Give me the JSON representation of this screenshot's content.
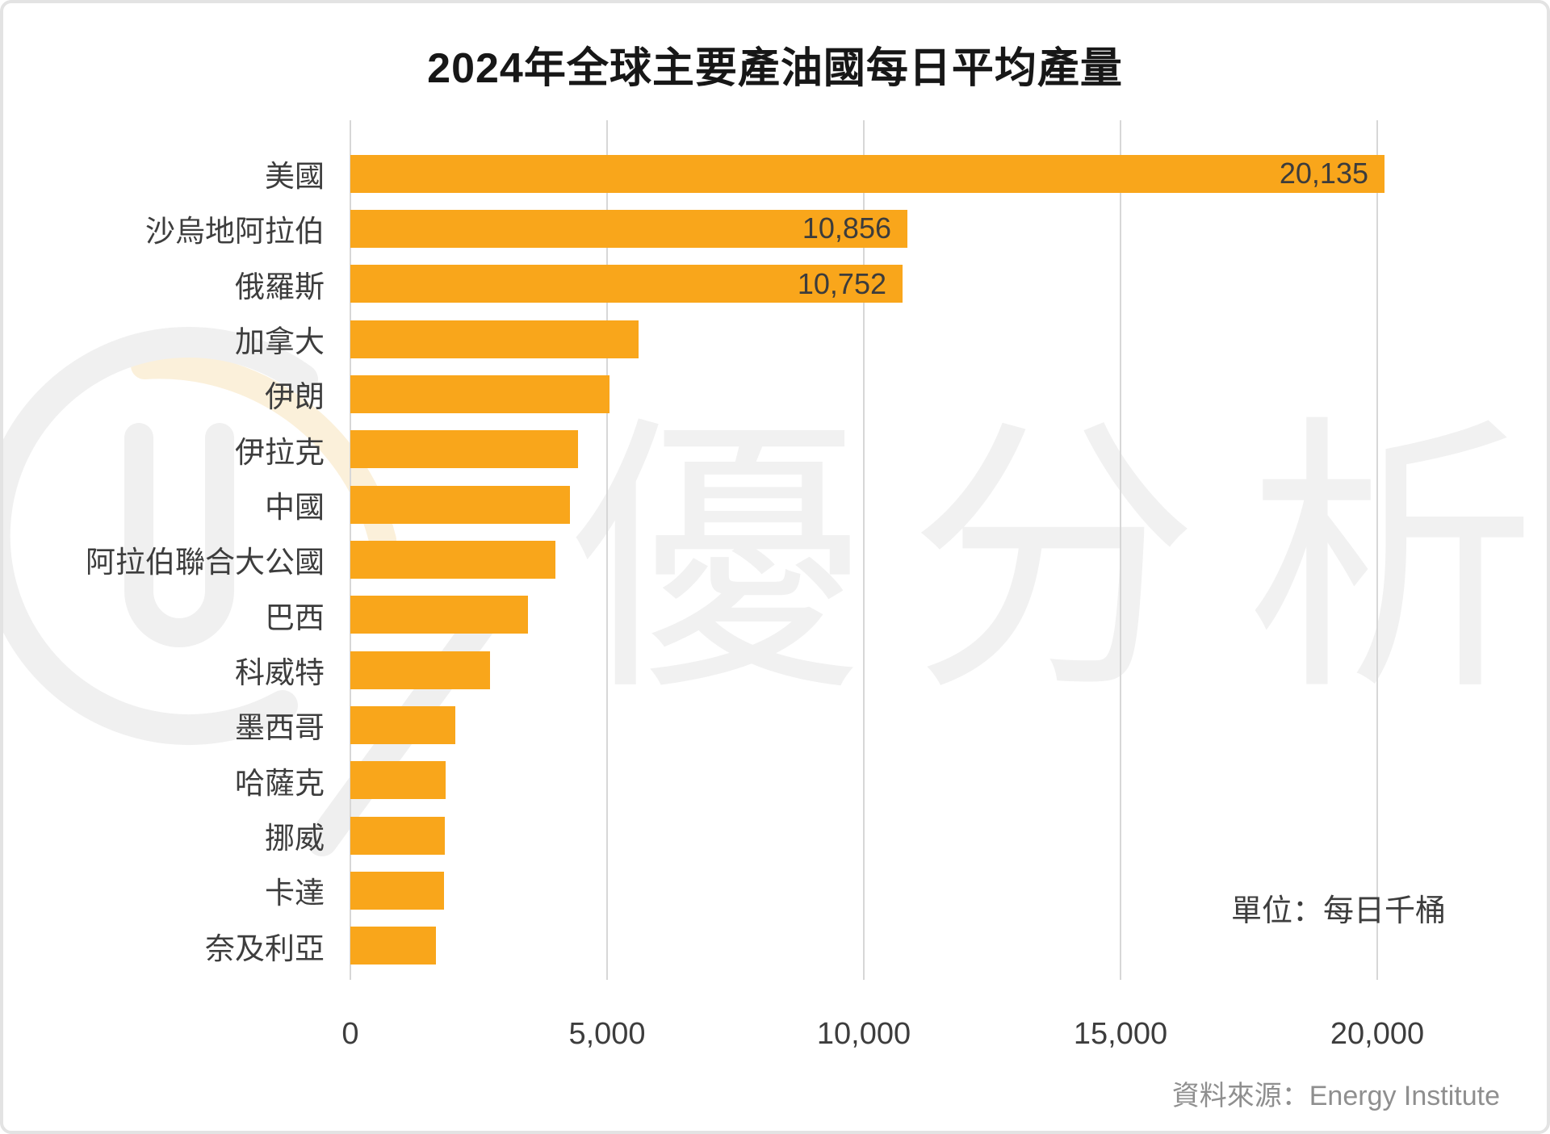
{
  "title": "2024年全球主要產油國每日平均產量",
  "unit_note": "單位：每日千桶",
  "source_note": "資料來源：Energy Institute",
  "watermark_text": "優分析",
  "colors": {
    "bar": "#F9A61B",
    "title": "#171717",
    "labels": "#3D3D3D",
    "grid": "#D7D7D7",
    "source": "#8F8F8F",
    "watermark": "#F1F1F1",
    "watermark_accent": "#FBF0DA"
  },
  "chart_data": {
    "type": "bar",
    "orientation": "horizontal",
    "title": "2024年全球主要產油國每日平均產量",
    "unit": "每日千桶",
    "source": "Energy Institute",
    "categories": [
      "美國",
      "沙烏地阿拉伯",
      "俄羅斯",
      "加拿大",
      "伊朗",
      "伊拉克",
      "中國",
      "阿拉伯聯合大公國",
      "巴西",
      "科威特",
      "墨西哥",
      "哈薩克",
      "挪威",
      "卡達",
      "奈及利亞"
    ],
    "values": [
      20135,
      10856,
      10752,
      5620,
      5040,
      4430,
      4280,
      4000,
      3460,
      2720,
      2040,
      1860,
      1840,
      1820,
      1660
    ],
    "value_labels": [
      "20,135",
      "10,856",
      "10,752",
      "",
      "",
      "",
      "",
      "",
      "",
      "",
      "",
      "",
      "",
      "",
      ""
    ],
    "x_ticks": [
      0,
      5000,
      10000,
      15000,
      20000
    ],
    "x_tick_labels": [
      "0",
      "5,000",
      "10,000",
      "15,000",
      "20,000"
    ],
    "xlim": [
      0,
      22320
    ],
    "grid": "vertical-only",
    "legend": "none"
  }
}
